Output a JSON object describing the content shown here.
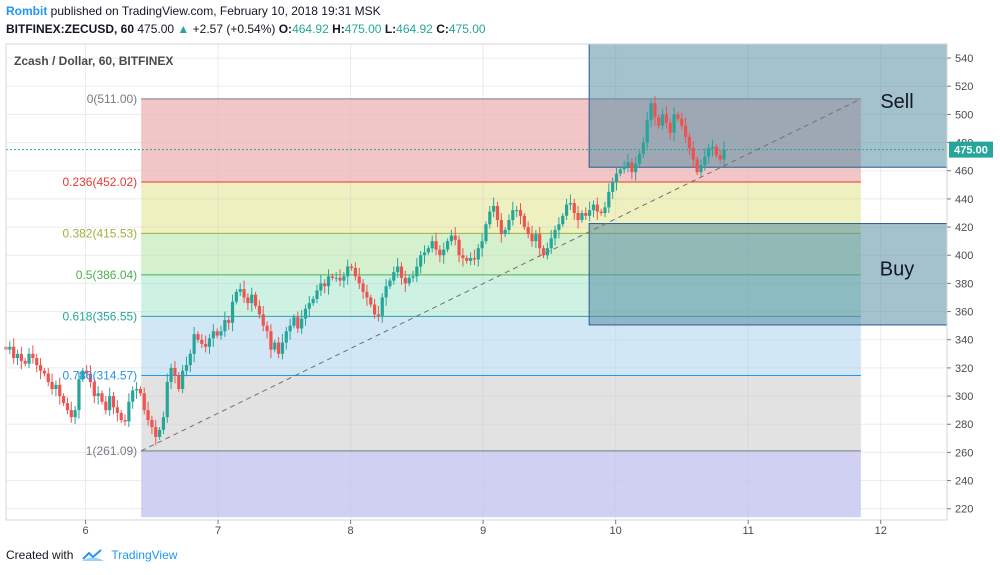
{
  "header": {
    "author": "Rombit",
    "published": "published on TradingView.com, February 10, 2018 19:31 MSK",
    "symbol": "BITFINEX:ZECUSD, 60",
    "last": "475.00",
    "change": "+2.57 (+0.54%)",
    "o_label": "O:",
    "o_value": "464.92",
    "h_label": "H:",
    "h_value": "475.00",
    "l_label": "L:",
    "l_value": "464.92",
    "c_label": "C:",
    "c_value": "475.00"
  },
  "footer": {
    "created_with": "Created with",
    "brand": "TradingView"
  },
  "colors": {
    "up": "#26a69a",
    "down": "#ef5350",
    "accent": "#2196f3"
  },
  "chart_data": {
    "type": "candlestick",
    "title": "Zcash / Dollar, 60, BITFINEX",
    "price_label": "475.00",
    "price_line": 475,
    "ylim": [
      212,
      550
    ],
    "xlim": [
      5.4,
      12.5
    ],
    "y_ticks": [
      220,
      240,
      260,
      280,
      300,
      320,
      340,
      360,
      380,
      400,
      420,
      440,
      460,
      480,
      500,
      520,
      540
    ],
    "x_ticks": [
      6,
      7,
      8,
      9,
      10,
      11,
      12
    ],
    "x_tick_labels": [
      "6",
      "7",
      "8",
      "9",
      "10",
      "11",
      "12"
    ],
    "fib": {
      "x_start": 6.42,
      "x_end": 11.85,
      "levels": [
        {
          "label": "0(511.00)",
          "value": 511.0,
          "color": "#787b86",
          "fill": "#f2c6c6"
        },
        {
          "label": "0.236(452.02)",
          "value": 452.02,
          "color": "#e53935",
          "fill": "#eff0c0"
        },
        {
          "label": "0.382(415.53)",
          "value": 415.53,
          "color": "#9cb33b",
          "fill": "#d4f0cc"
        },
        {
          "label": "0.5(386.04)",
          "value": 386.04,
          "color": "#4caf50",
          "fill": "#cdf2e4"
        },
        {
          "label": "0.618(356.55)",
          "value": 356.55,
          "color": "#26a69a",
          "fill": "#d1e7f5"
        },
        {
          "label": "0.786(314.57)",
          "value": 314.57,
          "color": "#2196f3",
          "fill": "#e2e2e2"
        },
        {
          "label": "1(261.09)",
          "value": 261.09,
          "color": "#787b86",
          "fill": "#d0d0f2"
        }
      ],
      "below_min": 214
    },
    "trendline": {
      "x0": 6.42,
      "y0": 261.09,
      "x1": 11.85,
      "y1": 511.0
    },
    "zones": [
      {
        "label": "Sell",
        "x0": 9.8,
        "x1": 12.5,
        "y0": 462.5,
        "y1": 550
      },
      {
        "label": "Buy",
        "x0": 9.8,
        "x1": 12.5,
        "y0": 350.5,
        "y1": 422.5
      }
    ],
    "candles_closes": [
      333,
      335,
      327,
      330,
      325,
      323,
      330,
      327,
      322,
      318,
      316,
      310,
      305,
      308,
      300,
      295,
      290,
      285,
      290,
      312,
      318,
      316,
      310,
      300,
      302,
      296,
      290,
      300,
      292,
      288,
      283,
      282,
      296,
      304,
      305,
      302,
      290,
      283,
      278,
      271,
      276,
      285,
      310,
      320,
      315,
      305,
      318,
      322,
      330,
      344,
      340,
      337,
      335,
      341,
      346,
      343,
      346,
      354,
      352,
      367,
      374,
      376,
      370,
      366,
      372,
      364,
      358,
      350,
      346,
      333,
      338,
      330,
      338,
      346,
      350,
      356,
      348,
      355,
      362,
      366,
      369,
      375,
      380,
      378,
      385,
      384,
      384,
      382,
      385,
      392,
      391,
      385,
      380,
      374,
      370,
      365,
      358,
      357,
      370,
      378,
      382,
      388,
      392,
      384,
      380,
      384,
      385,
      392,
      400,
      402,
      405,
      410,
      404,
      400,
      404,
      410,
      414,
      411,
      400,
      398,
      396,
      398,
      397,
      405,
      410,
      422,
      431,
      435,
      425,
      415,
      418,
      425,
      432,
      432,
      428,
      420,
      415,
      410,
      415,
      405,
      400,
      405,
      412,
      418,
      422,
      428,
      436,
      437,
      430,
      425,
      430,
      428,
      432,
      436,
      431,
      430,
      434,
      445,
      452,
      458,
      461,
      463,
      466,
      459,
      465,
      472,
      480,
      496,
      508,
      498,
      492,
      500,
      494,
      487,
      500,
      497,
      492,
      484,
      476,
      468,
      459,
      464,
      470,
      476,
      477,
      471,
      468,
      475
    ]
  }
}
